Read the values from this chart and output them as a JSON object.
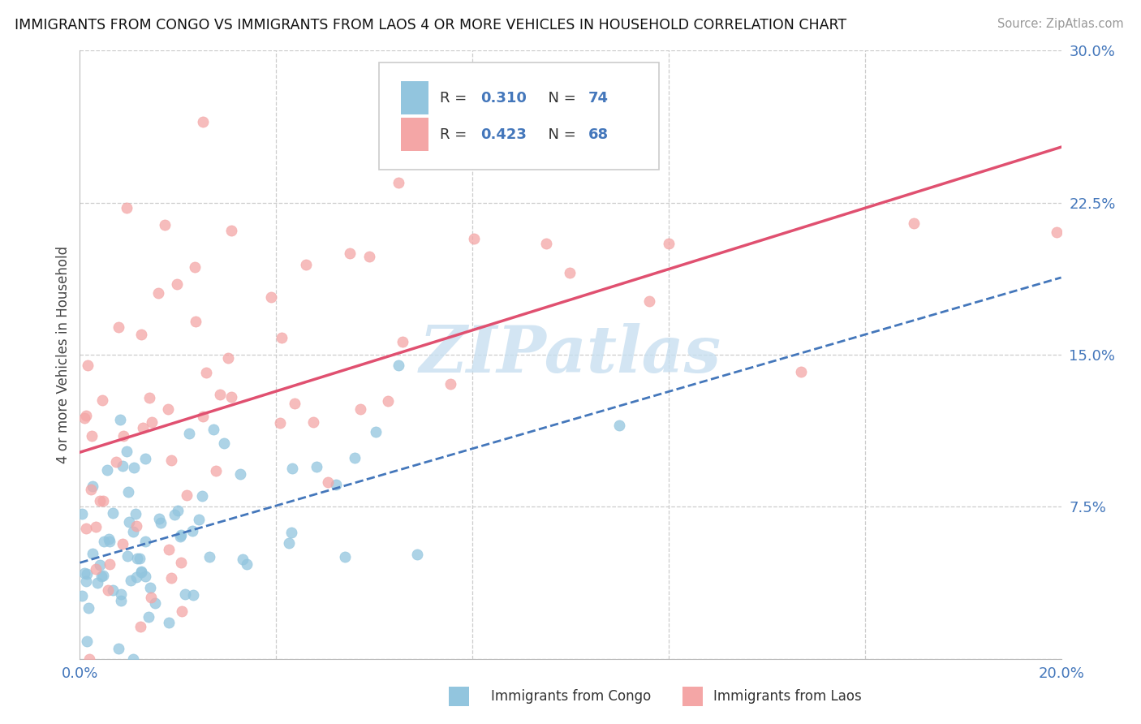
{
  "title": "IMMIGRANTS FROM CONGO VS IMMIGRANTS FROM LAOS 4 OR MORE VEHICLES IN HOUSEHOLD CORRELATION CHART",
  "source": "Source: ZipAtlas.com",
  "ylabel": "4 or more Vehicles in Household",
  "xlim": [
    0.0,
    0.2
  ],
  "ylim": [
    0.0,
    0.3
  ],
  "xticks": [
    0.0,
    0.04,
    0.08,
    0.12,
    0.16,
    0.2
  ],
  "yticks": [
    0.0,
    0.075,
    0.15,
    0.225,
    0.3
  ],
  "congo_color": "#92c5de",
  "laos_color": "#f4a6a6",
  "congo_line_color": "#4477bb",
  "laos_line_color": "#e05070",
  "tick_label_color": "#4477bb",
  "watermark": "ZIPatlas",
  "watermark_color": "#c8dff0",
  "congo_intercept": 0.048,
  "congo_slope": 0.72,
  "laos_intercept": 0.075,
  "laos_slope": 0.77
}
